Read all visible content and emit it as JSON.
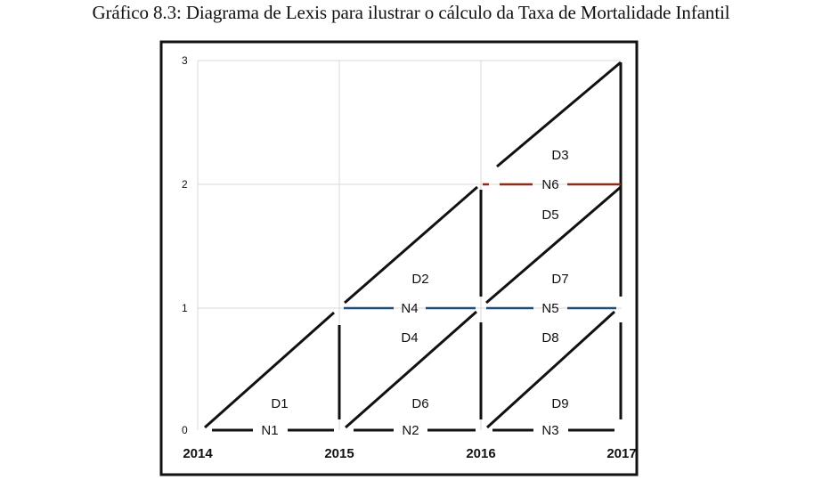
{
  "caption": "Gráfico 8.3: Diagrama de Lexis para ilustrar o cálculo da Taxa de Mortalidade Infantil",
  "x_ticks": [
    "2014",
    "2015",
    "2016",
    "2017"
  ],
  "y_ticks": [
    "0",
    "1",
    "2",
    "3"
  ],
  "colors": {
    "frame": "#111111",
    "grid": "#d9d9d9",
    "lifeline": "#111111",
    "age1_line": "#1f4e79",
    "age2_line": "#8b2e16"
  },
  "cohort_labels": {
    "n1": "N1",
    "n2": "N2",
    "n3": "N3",
    "n4": "N4",
    "n5": "N5",
    "n6": "N6"
  },
  "death_labels": {
    "d1": "D1",
    "d2": "D2",
    "d3": "D3",
    "d4": "D4",
    "d5": "D5",
    "d6": "D6",
    "d7": "D7",
    "d8": "D8",
    "d9": "D9"
  }
}
